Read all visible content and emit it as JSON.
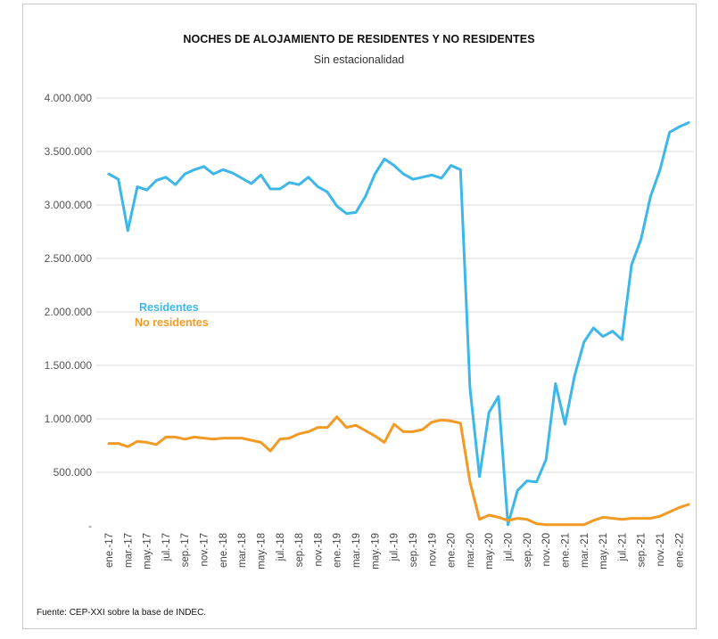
{
  "title": "NOCHES DE ALOJAMIENTO DE RESIDENTES Y NO RESIDENTES",
  "subtitle": "Sin estacionalidad",
  "source": "Fuente: CEP-XXI sobre la base de INDEC.",
  "colors": {
    "residentes": "#3db7e9",
    "no_residentes": "#f39a24",
    "grid": "#d9d9d9"
  },
  "chart_data": {
    "type": "line",
    "title": "NOCHES DE ALOJAMIENTO DE RESIDENTES Y NO RESIDENTES",
    "subtitle": "Sin estacionalidad",
    "xlabel": "",
    "ylabel": "",
    "ylim": [
      0,
      4000000
    ],
    "yticks": [
      "-",
      "500.000",
      "1.000.000",
      "1.500.000",
      "2.000.000",
      "2.500.000",
      "3.000.000",
      "3.500.000",
      "4.000.000"
    ],
    "grid": true,
    "legend": "inside-left",
    "x": [
      "ene.-17",
      "feb.-17",
      "mar.-17",
      "abr.-17",
      "may.-17",
      "jun.-17",
      "jul.-17",
      "ago.-17",
      "sep.-17",
      "oct.-17",
      "nov.-17",
      "dic.-17",
      "ene.-18",
      "feb.-18",
      "mar.-18",
      "abr.-18",
      "may.-18",
      "jun.-18",
      "jul.-18",
      "ago.-18",
      "sep.-18",
      "oct.-18",
      "nov.-18",
      "dic.-18",
      "ene.-19",
      "feb.-19",
      "mar.-19",
      "abr.-19",
      "may.-19",
      "jun.-19",
      "jul.-19",
      "ago.-19",
      "sep.-19",
      "oct.-19",
      "nov.-19",
      "dic.-19",
      "ene.-20",
      "feb.-20",
      "mar.-20",
      "abr.-20",
      "may.-20",
      "jun.-20",
      "jul.-20",
      "ago.-20",
      "sep.-20",
      "oct.-20",
      "nov.-20",
      "dic.-20",
      "ene.-21",
      "feb.-21",
      "mar.-21",
      "abr.-21",
      "may.-21",
      "jun.-21",
      "jul.-21",
      "ago.-21",
      "sep.-21",
      "oct.-21",
      "nov.-21",
      "dic.-21",
      "ene.-22",
      "feb.-22"
    ],
    "xticks": [
      "ene.-17",
      "mar.-17",
      "may.-17",
      "jul.-17",
      "sep.-17",
      "nov.-17",
      "ene.-18",
      "mar.-18",
      "may.-18",
      "jul.-18",
      "sep.-18",
      "nov.-18",
      "ene.-19",
      "mar.-19",
      "may.-19",
      "jul.-19",
      "sep.-19",
      "nov.-19",
      "ene.-20",
      "mar.-20",
      "may.-20",
      "jul.-20",
      "sep.-20",
      "nov.-20",
      "ene.-21",
      "mar.-21",
      "may.-21",
      "jul.-21",
      "sep.-21",
      "nov.-21",
      "ene.-22"
    ],
    "series": [
      {
        "name": "Residentes",
        "color": "#3db7e9",
        "values": [
          3290000,
          3240000,
          2760000,
          3170000,
          3140000,
          3230000,
          3260000,
          3190000,
          3290000,
          3330000,
          3360000,
          3290000,
          3330000,
          3300000,
          3250000,
          3200000,
          3280000,
          3150000,
          3150000,
          3210000,
          3190000,
          3260000,
          3170000,
          3120000,
          2990000,
          2920000,
          2930000,
          3080000,
          3290000,
          3430000,
          3370000,
          3290000,
          3240000,
          3260000,
          3280000,
          3250000,
          3370000,
          3330000,
          1290000,
          460000,
          1060000,
          1210000,
          10000,
          330000,
          420000,
          410000,
          620000,
          1330000,
          950000,
          1400000,
          1720000,
          1850000,
          1770000,
          1820000,
          1740000,
          2440000,
          2680000,
          3080000,
          3330000,
          3680000,
          3730000,
          3770000
        ]
      },
      {
        "name": "No residentes",
        "color": "#f39a24",
        "values": [
          770000,
          770000,
          740000,
          790000,
          780000,
          760000,
          830000,
          830000,
          810000,
          830000,
          820000,
          810000,
          820000,
          820000,
          820000,
          800000,
          780000,
          700000,
          810000,
          820000,
          860000,
          880000,
          920000,
          920000,
          1020000,
          920000,
          940000,
          890000,
          840000,
          780000,
          950000,
          880000,
          880000,
          900000,
          970000,
          990000,
          980000,
          960000,
          410000,
          60000,
          100000,
          80000,
          50000,
          70000,
          60000,
          20000,
          10000,
          10000,
          10000,
          10000,
          10000,
          50000,
          80000,
          70000,
          60000,
          70000,
          70000,
          70000,
          90000,
          130000,
          170000,
          200000
        ]
      }
    ]
  }
}
